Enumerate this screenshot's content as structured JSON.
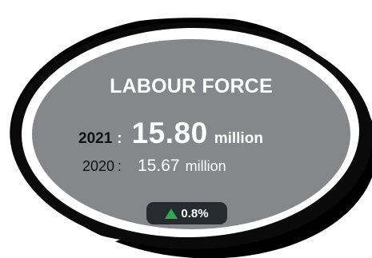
{
  "card": {
    "title": "LABOUR FORCE",
    "current": {
      "year": "2021",
      "separator": ":",
      "value": "15.80",
      "unit": "million"
    },
    "previous": {
      "year": "2020",
      "separator": ":",
      "value": "15.67",
      "unit": "million"
    },
    "change": {
      "direction_icon": "triangle-up-icon",
      "text": "0.8%",
      "color": "#2fa84f"
    }
  },
  "colors": {
    "card_fill": "#86878a",
    "brush_stroke": "#000000",
    "badge_fill": "#252b31"
  }
}
